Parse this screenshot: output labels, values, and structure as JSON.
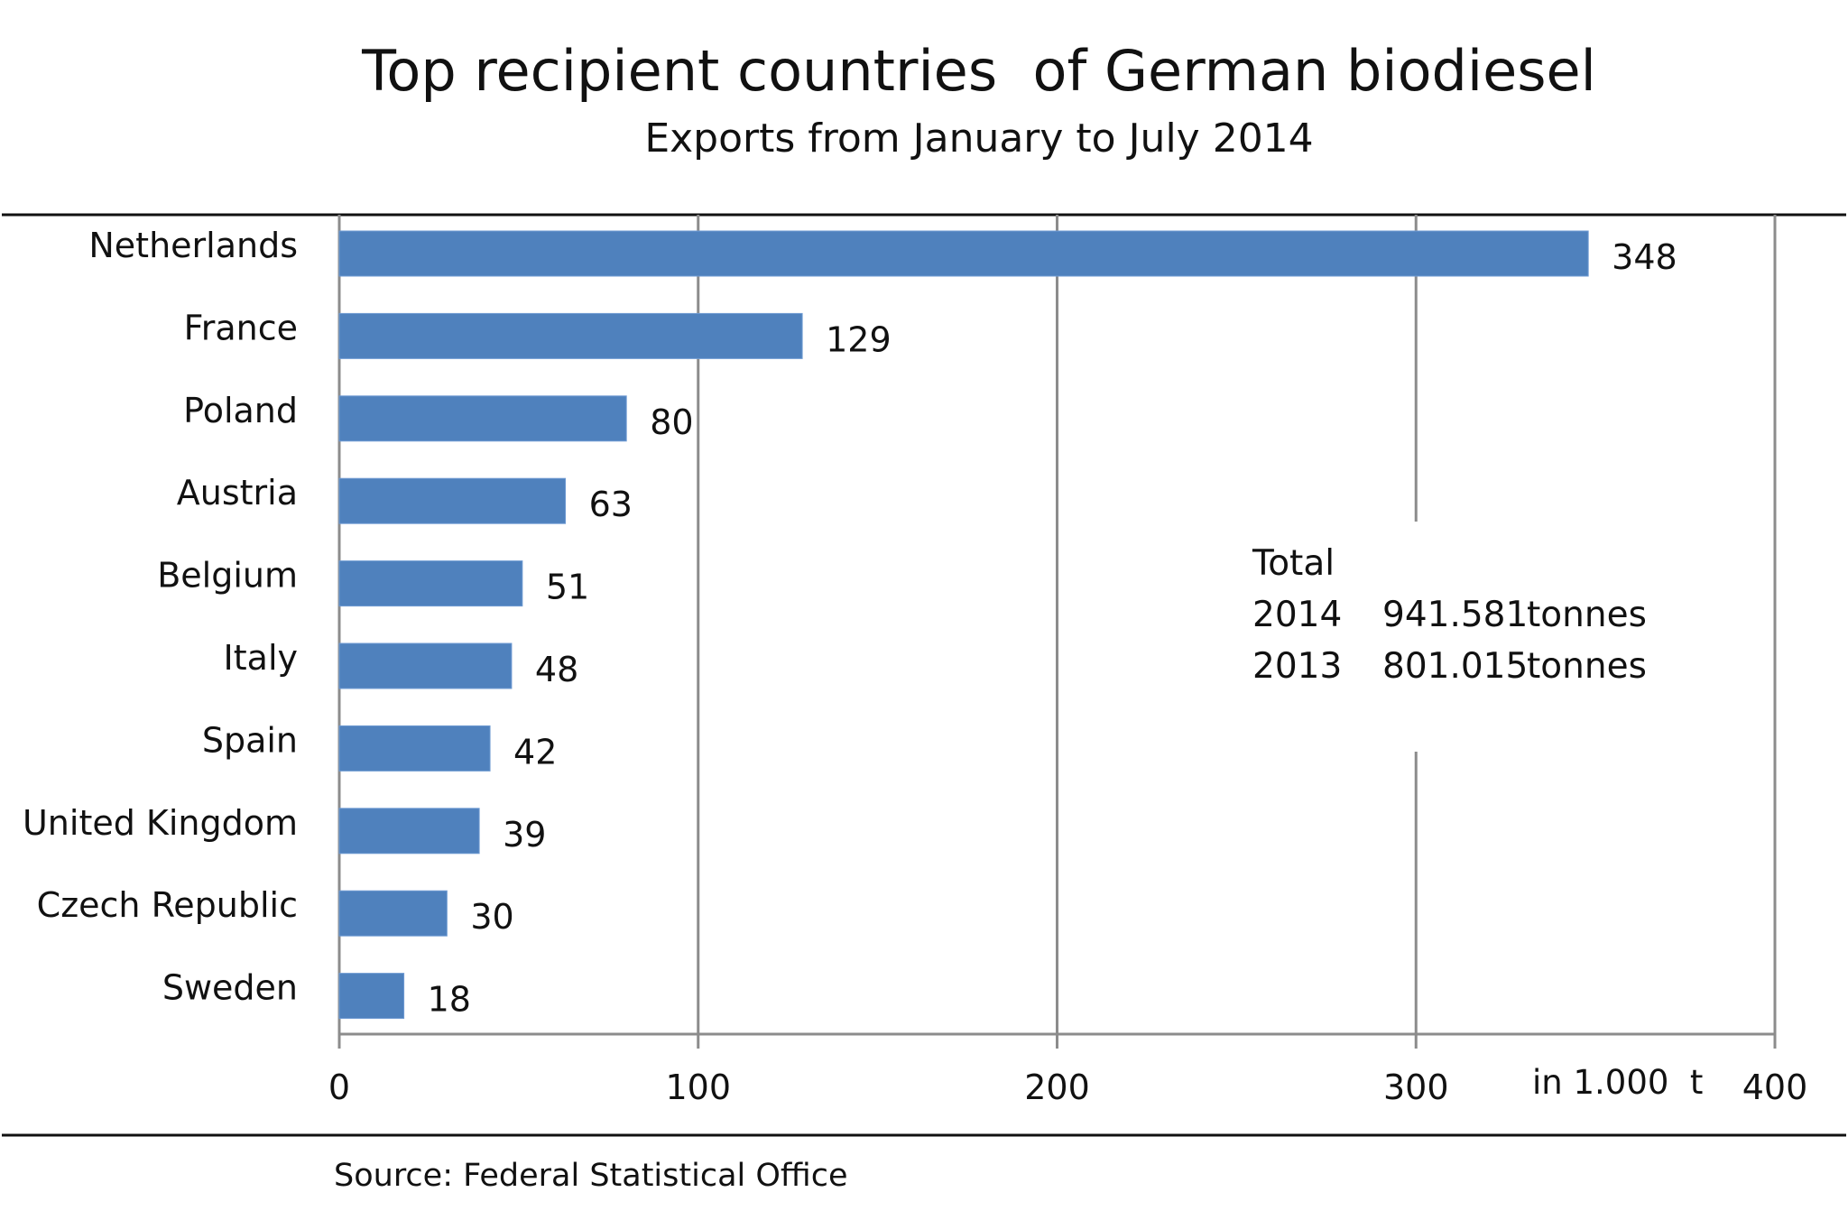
{
  "chart_data": {
    "type": "bar",
    "orientation": "horizontal",
    "title": "Top recipient countries  of German biodiesel",
    "subtitle": "Exports from January to July 2014",
    "categories": [
      "Netherlands",
      "France",
      "Poland",
      "Austria",
      "Belgium",
      "Italy",
      "Spain",
      "United Kingdom",
      "Czech Republic",
      "Sweden"
    ],
    "values": [
      348,
      129,
      80,
      63,
      51,
      48,
      42,
      39,
      30,
      18
    ],
    "value_labels": [
      "348",
      "129",
      "80",
      "63",
      "51",
      "48",
      "42",
      "39",
      "30",
      "18"
    ],
    "xlabel": "in 1.000  t",
    "ylabel": "",
    "xlim": [
      0,
      400
    ],
    "xticks": [
      0,
      100,
      200,
      300,
      400
    ],
    "xtick_labels": [
      "0",
      "100",
      "200",
      "300",
      "400"
    ],
    "grid": "vertical",
    "bar_color": "#4f81bd",
    "gridline_color": "#8c8c8c",
    "annotation": {
      "heading": "Total",
      "rows": [
        {
          "year": "2014",
          "amount": "941.581",
          "unit": "tonnes"
        },
        {
          "year": "2013",
          "amount": "801.015",
          "unit": "tonnes"
        }
      ]
    },
    "source": "Source: Federal Statistical Office"
  }
}
